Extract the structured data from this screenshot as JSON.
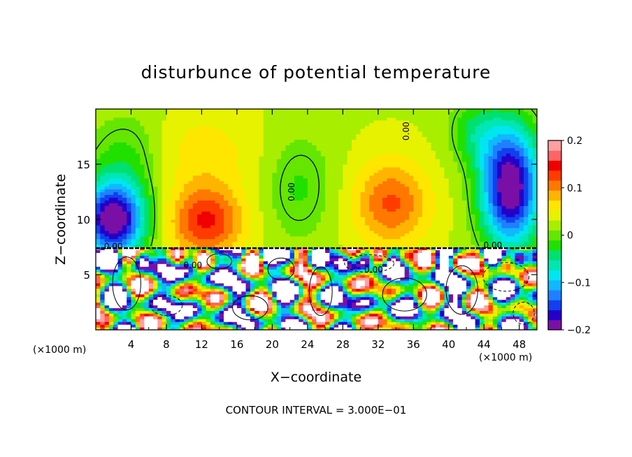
{
  "chart_data": {
    "type": "heatmap",
    "title": "disturbunce of potential temperature",
    "xlabel": "X−coordinate",
    "ylabel": "Z−coordinate",
    "x_unit_left": "(×1000 m)",
    "x_unit_right": "(×1000 m)",
    "footer": "CONTOUR INTERVAL = 3.000E−01",
    "xlim": [
      0,
      50
    ],
    "ylim": [
      0,
      20
    ],
    "x_ticks": [
      4,
      8,
      12,
      16,
      20,
      24,
      28,
      32,
      36,
      40,
      44,
      48
    ],
    "x_tick_labels": [
      "4",
      "8",
      "12",
      "16",
      "20",
      "24",
      "28",
      "32",
      "36",
      "40",
      "44",
      "48"
    ],
    "y_ticks": [
      5,
      10,
      15
    ],
    "y_tick_labels": [
      "5",
      "10",
      "15"
    ],
    "colorbar": {
      "min": -0.2,
      "max": 0.2,
      "ticks": [
        0.2,
        0.1,
        0,
        -0.1,
        -0.2
      ],
      "tick_labels": [
        "0.2",
        "0.1",
        "0",
        "−0.1",
        "−0.2"
      ],
      "colors": [
        "#7a0fa6",
        "#2400c8",
        "#1040f0",
        "#1f80ff",
        "#10b8ff",
        "#00e6f0",
        "#00e6b4",
        "#00e070",
        "#20e000",
        "#64e600",
        "#a8ee00",
        "#e6f200",
        "#ffe600",
        "#ffb400",
        "#ff7800",
        "#ff3c00",
        "#f00000",
        "#ff6464",
        "#ffa0a0"
      ]
    },
    "contour_interval": 0.3,
    "contour_labels": [
      "0.00",
      "0.00",
      "0.00",
      "0.00",
      "0.00",
      "0.00"
    ],
    "inversion_height": 7.4
  }
}
